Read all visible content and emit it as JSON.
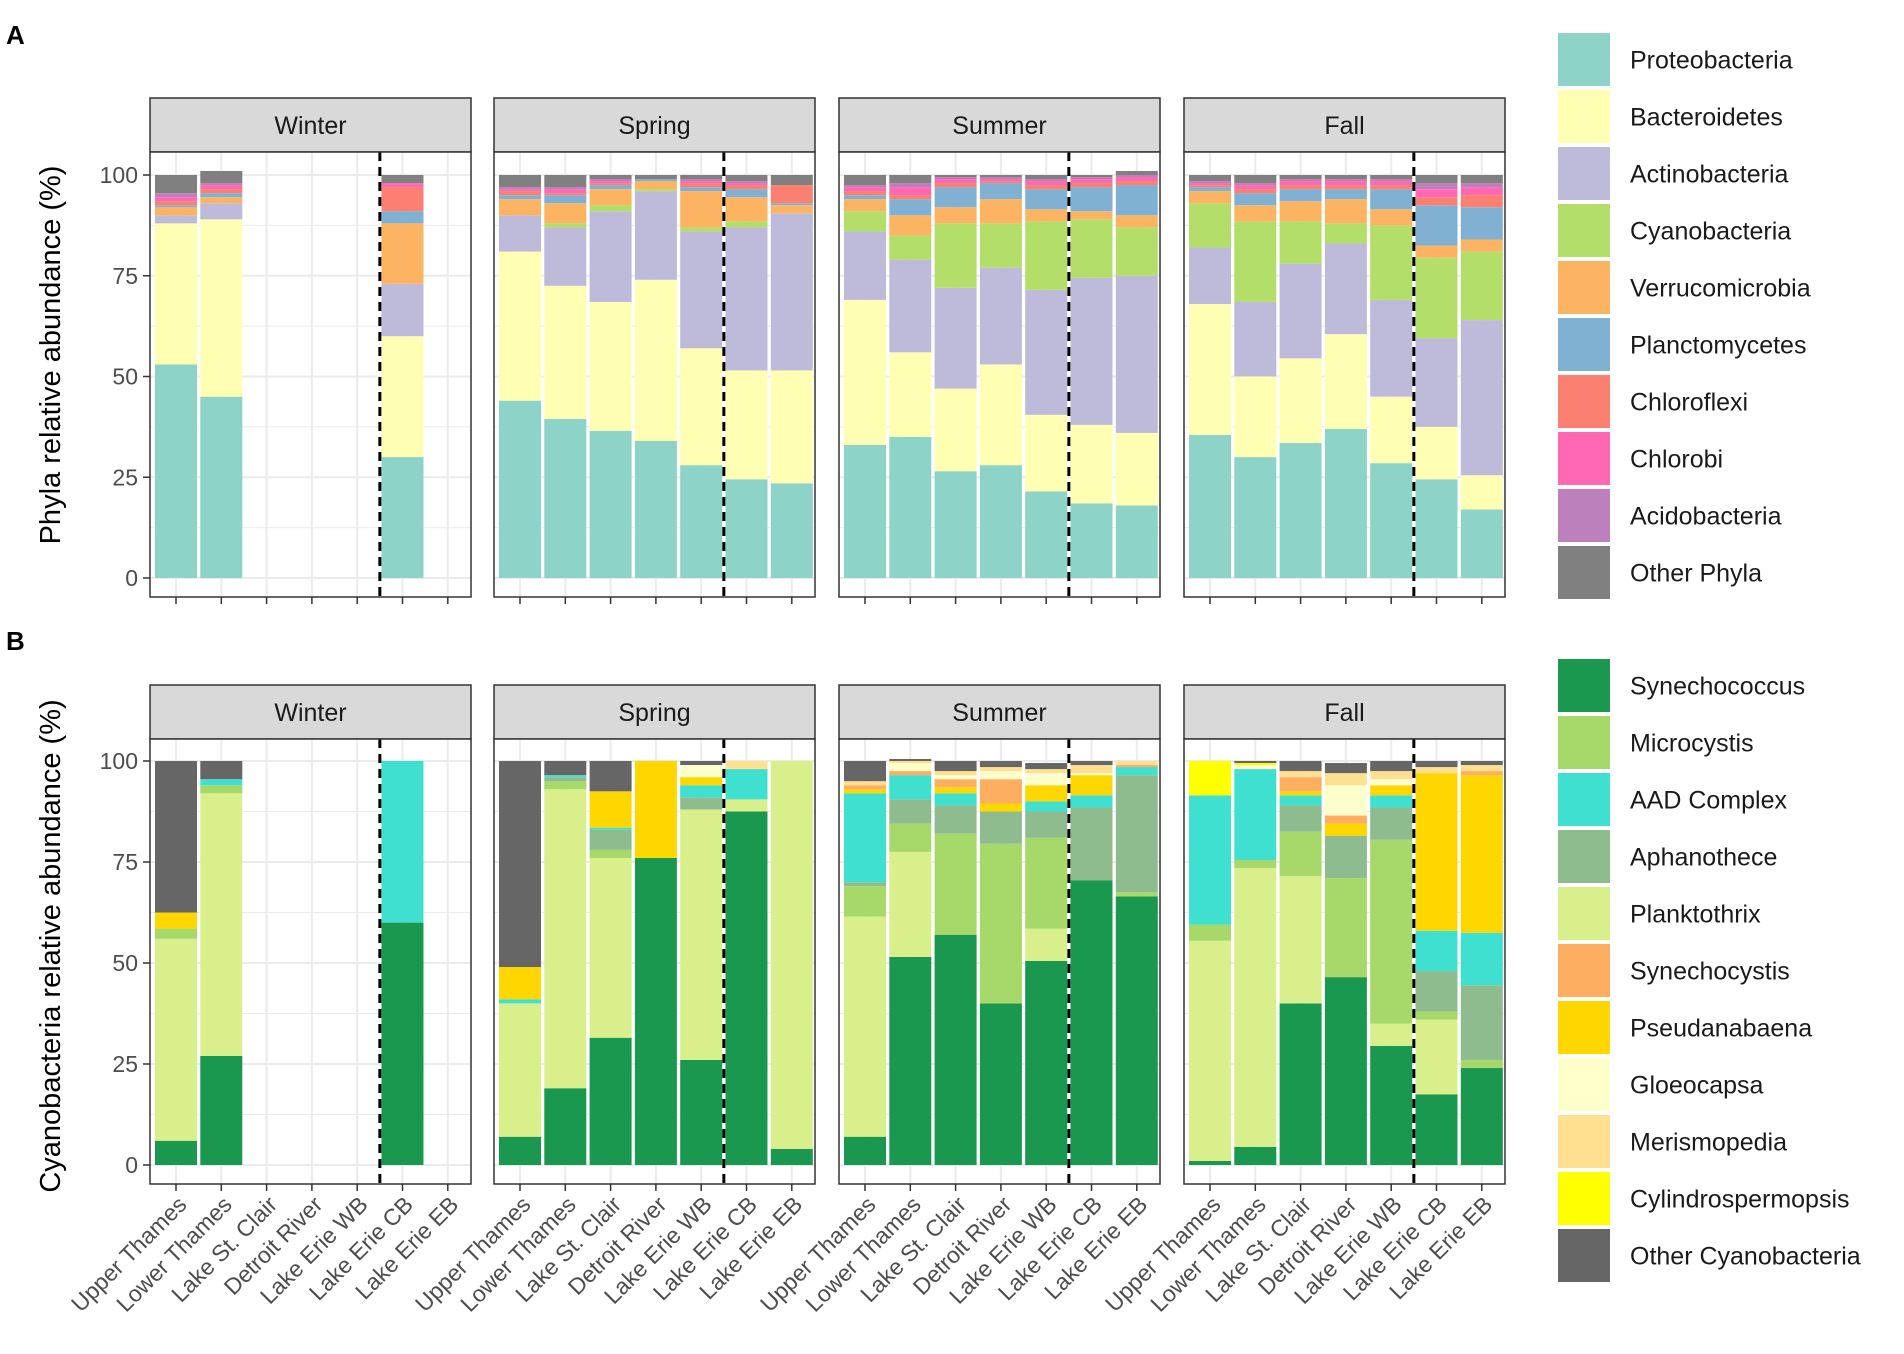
{
  "colors": {
    "phyla": {
      "Proteobacteria": "#8DD3C7",
      "Bacteroidetes": "#FFFFB3",
      "Actinobacteria": "#BEBADA",
      "Cyanobacteria": "#B3DE69",
      "Verrucomicrobia": "#FDB462",
      "Planctomycetes": "#80B1D3",
      "Chloroflexi": "#FB8072",
      "Chlorobi": "#FF69B4",
      "Acidobacteria": "#BC80BD",
      "Other Phyla": "#808080"
    },
    "genera": {
      "Synechococcus": "#1A9850",
      "Microcystis": "#A6D96A",
      "AAD Complex": "#40E0D0",
      "Aphanothece": "#8FBC8F",
      "Planktothrix": "#D9EF8B",
      "Synechocystis": "#FDAE61",
      "Pseudanabaena": "#FFD700",
      "Gloeocapsa": "#FFFFCC",
      "Merismopedia": "#FEE090",
      "Cylindrospermopsis": "#FFFF00",
      "Other Cyanobacteria": "#666666"
    }
  },
  "chart_data": [
    {
      "panel_label": "A",
      "type": "bar",
      "stacked": true,
      "ylabel": "Phyla relative abundance (%)",
      "ylim": [
        0,
        100
      ],
      "yticks": [
        "0",
        "25",
        "50",
        "75",
        "100"
      ],
      "facets": [
        "Winter",
        "Spring",
        "Summer",
        "Fall"
      ],
      "categories": [
        "Upper Thames",
        "Lower Thames",
        "Lake St. Clair",
        "Detroit River",
        "Lake Erie WB",
        "Lake Erie CB",
        "Lake Erie EB"
      ],
      "legend": [
        "Proteobacteria",
        "Bacteroidetes",
        "Actinobacteria",
        "Cyanobacteria",
        "Verrucomicrobia",
        "Planctomycetes",
        "Chloroflexi",
        "Chlorobi",
        "Acidobacteria",
        "Other Phyla"
      ],
      "stack_order": [
        "Proteobacteria",
        "Bacteroidetes",
        "Actinobacteria",
        "Cyanobacteria",
        "Verrucomicrobia",
        "Planctomycetes",
        "Chloroflexi",
        "Chlorobi",
        "Acidobacteria",
        "Other Phyla"
      ],
      "divider_after_category": "Lake Erie WB",
      "values": {
        "Winter": [
          [
            53,
            35,
            2,
            0,
            2,
            0.5,
            1,
            1,
            1,
            4.5
          ],
          [
            45,
            44,
            4,
            0,
            1.5,
            1,
            1,
            1,
            0.5,
            3
          ],
          null,
          null,
          null,
          [
            30,
            30,
            13,
            0,
            15,
            3,
            6,
            1,
            0,
            2
          ],
          null
        ],
        "Spring": [
          [
            44,
            37,
            9,
            0,
            4,
            1,
            1,
            0.5,
            0.5,
            3
          ],
          [
            39.5,
            33,
            14.5,
            1,
            5,
            2,
            0.5,
            1,
            0.5,
            3
          ],
          [
            36.5,
            32,
            22.5,
            1.5,
            4,
            1,
            0.5,
            0.5,
            0.5,
            1
          ],
          [
            34,
            40,
            22,
            0.5,
            2,
            0.5,
            0,
            0,
            0,
            1
          ],
          [
            28,
            29,
            29,
            1,
            9,
            1,
            1,
            0.5,
            0.5,
            1
          ],
          [
            24.5,
            27,
            35.5,
            1.5,
            6,
            2,
            1,
            0.5,
            0.5,
            1.5
          ],
          [
            23.5,
            28,
            39,
            0,
            2,
            0.5,
            4.5,
            0,
            0,
            2.5
          ]
        ],
        "Summer": [
          [
            33,
            36,
            17,
            5,
            3,
            1,
            1,
            1,
            0.5,
            2.5
          ],
          [
            35,
            21,
            23,
            6,
            5,
            4,
            1,
            2,
            1,
            2
          ],
          [
            26.5,
            20.5,
            25,
            16,
            4,
            5,
            1,
            1,
            0.5,
            0.5
          ],
          [
            28,
            25,
            24,
            11,
            6,
            4,
            0.5,
            0.5,
            0.5,
            0.5
          ],
          [
            21.5,
            19,
            31,
            17,
            3,
            5,
            1,
            1,
            0.5,
            1
          ],
          [
            18.5,
            19.5,
            36.5,
            14.5,
            2,
            6,
            1,
            1,
            0.5,
            0.5
          ],
          [
            18,
            18,
            39,
            12,
            3,
            7.5,
            1,
            1,
            0.5,
            1
          ]
        ],
        "Fall": [
          [
            35.5,
            32.5,
            14,
            11,
            3,
            1,
            0.5,
            0.5,
            0.5,
            1.5
          ],
          [
            30,
            20,
            18.5,
            20,
            4,
            3,
            1,
            1,
            0.5,
            2
          ],
          [
            33.5,
            21,
            23.5,
            10.5,
            5,
            3,
            1,
            1,
            0.5,
            1
          ],
          [
            37,
            23.5,
            22.5,
            5,
            6,
            2.5,
            1,
            1,
            0.5,
            1
          ],
          [
            28.5,
            16.5,
            24,
            18.5,
            4,
            5,
            1,
            1,
            0.5,
            1
          ],
          [
            24.5,
            13,
            22,
            20,
            3,
            10,
            2,
            2,
            1.5,
            2
          ],
          [
            17,
            8.5,
            38.5,
            17,
            3,
            8,
            3,
            2,
            1,
            2
          ]
        ]
      }
    },
    {
      "panel_label": "B",
      "type": "bar",
      "stacked": true,
      "ylabel": "Cyanobacteria relative abundance (%)",
      "ylim": [
        0,
        100
      ],
      "yticks": [
        "0",
        "25",
        "50",
        "75",
        "100"
      ],
      "facets": [
        "Winter",
        "Spring",
        "Summer",
        "Fall"
      ],
      "categories": [
        "Upper Thames",
        "Lower Thames",
        "Lake St. Clair",
        "Detroit River",
        "Lake Erie WB",
        "Lake Erie CB",
        "Lake Erie EB"
      ],
      "legend": [
        "Synechococcus",
        "Microcystis",
        "AAD Complex",
        "Aphanothece",
        "Planktothrix",
        "Synechocystis",
        "Pseudanabaena",
        "Gloeocapsa",
        "Merismopedia",
        "Cylindrospermopsis",
        "Other Cyanobacteria"
      ],
      "stack_order": [
        "Synechococcus",
        "Planktothrix",
        "Microcystis",
        "Aphanothece",
        "AAD Complex",
        "Pseudanabaena",
        "Synechocystis",
        "Gloeocapsa",
        "Merismopedia",
        "Cylindrospermopsis",
        "Other Cyanobacteria"
      ],
      "divider_after_category": "Lake Erie WB",
      "values": {
        "Winter": [
          [
            6,
            50,
            2.5,
            0,
            0,
            4,
            0,
            0,
            0,
            0,
            37.5
          ],
          [
            27,
            65,
            2,
            0,
            1.5,
            0,
            0,
            0,
            0,
            0,
            4.5
          ],
          null,
          null,
          null,
          [
            60,
            0,
            0,
            0,
            40,
            0,
            0,
            0,
            0,
            0,
            0
          ],
          null
        ],
        "Spring": [
          [
            7,
            33,
            0,
            0,
            1,
            8,
            0,
            0,
            0,
            0,
            51
          ],
          [
            19,
            74,
            2,
            1,
            0.5,
            0,
            0,
            0,
            0,
            0,
            3.5
          ],
          [
            31.5,
            44.5,
            2,
            5,
            0.5,
            9,
            0,
            0,
            0,
            0,
            7.5
          ],
          [
            76,
            0,
            0,
            0,
            0,
            24,
            0,
            0,
            0,
            0,
            0
          ],
          [
            26,
            62,
            0,
            3,
            3,
            2,
            0,
            3,
            0,
            0,
            1
          ],
          [
            87.5,
            3,
            0,
            0,
            7.5,
            0,
            0,
            0,
            2,
            0,
            0
          ],
          [
            4,
            96,
            0,
            0,
            0,
            0,
            0,
            0,
            0,
            0,
            0
          ]
        ],
        "Summer": [
          [
            7,
            54.5,
            7.5,
            1,
            22,
            1,
            1,
            0,
            1,
            0,
            5
          ],
          [
            51.5,
            26,
            7,
            6,
            6,
            0,
            1,
            2,
            0.5,
            0,
            0.5
          ],
          [
            57,
            0,
            25,
            7,
            3,
            1.5,
            2,
            1,
            1,
            0,
            2.5
          ],
          [
            40,
            0,
            39.5,
            8,
            0,
            2,
            6,
            2,
            1,
            0,
            1.5
          ],
          [
            50.5,
            8,
            22.5,
            6.5,
            2.5,
            4,
            0,
            3,
            1,
            0,
            1.5
          ],
          [
            70.5,
            0,
            0,
            18,
            3,
            5,
            0,
            0.5,
            2,
            0,
            1
          ],
          [
            66.5,
            0,
            1,
            29,
            2,
            0,
            0.5,
            0,
            1,
            0,
            0
          ]
        ],
        "Fall": [
          [
            1,
            54.5,
            4,
            0,
            32,
            0,
            0,
            0,
            0,
            8.5,
            0
          ],
          [
            4.5,
            69,
            2,
            0,
            22.5,
            0,
            0,
            1,
            0,
            0.5,
            0.5
          ],
          [
            40,
            31.5,
            11,
            6.5,
            2.5,
            1,
            3.5,
            0,
            1.5,
            0,
            2.5
          ],
          [
            46.5,
            0,
            24.5,
            10.5,
            0,
            3,
            2,
            7.5,
            3,
            0,
            2.5
          ],
          [
            29.5,
            5.5,
            45.5,
            8,
            3,
            2.5,
            0,
            1.5,
            2,
            0,
            2.5
          ],
          [
            17.5,
            18.5,
            2,
            10,
            10,
            39,
            0,
            0,
            1.5,
            0,
            1.5
          ],
          [
            24,
            0,
            2,
            18.5,
            13,
            39,
            1,
            0,
            1.5,
            0,
            1
          ]
        ]
      }
    }
  ]
}
